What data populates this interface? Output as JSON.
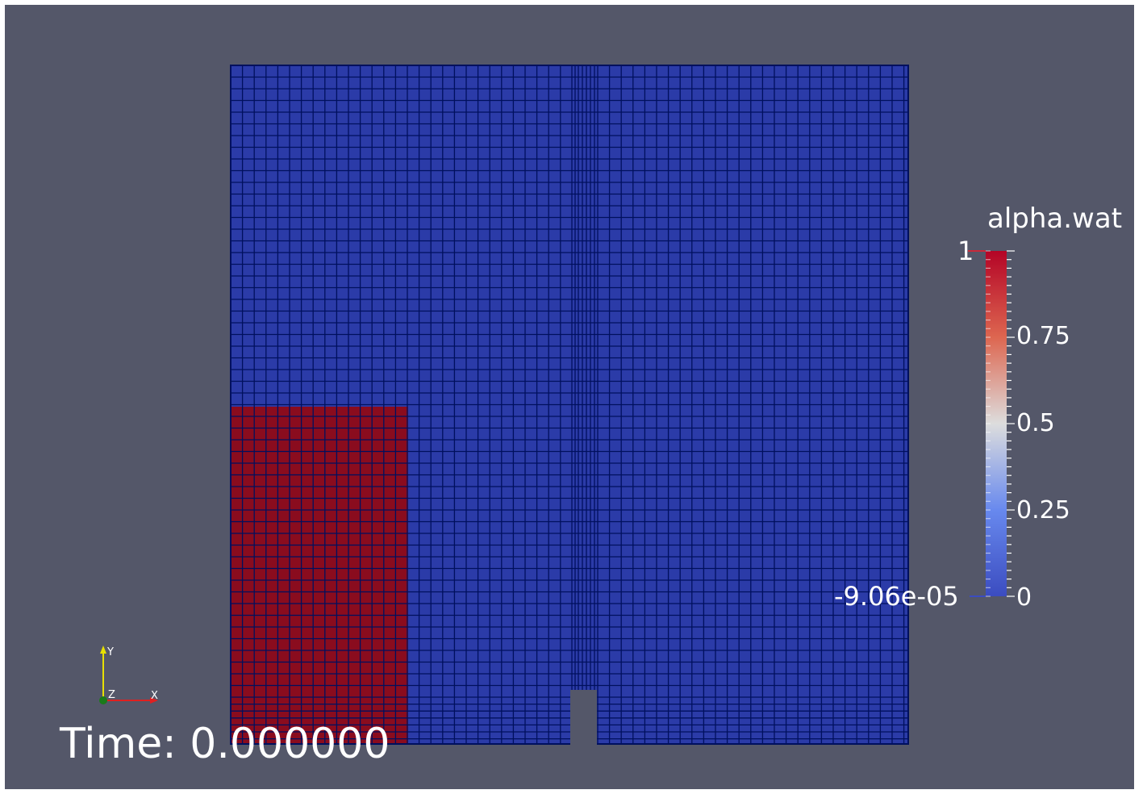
{
  "viewport": {
    "background": "#545769",
    "time_label": "Time: 0.000000"
  },
  "legend": {
    "title": "alpha.wat",
    "max_label": "1",
    "min_label": "-9.06e-05",
    "tick_labels": [
      "0.75",
      "0.5",
      "0.25",
      "0"
    ],
    "colormap": [
      "#b40426",
      "#dd6650",
      "#dddddd",
      "#6889ee",
      "#3b4cc0"
    ]
  },
  "axes": {
    "x": "X",
    "y": "Y",
    "z": "Z"
  },
  "mesh": {
    "air_color": "#2b3ba8",
    "water_color": "#8a0c1e",
    "line_color": "#00105e"
  }
}
